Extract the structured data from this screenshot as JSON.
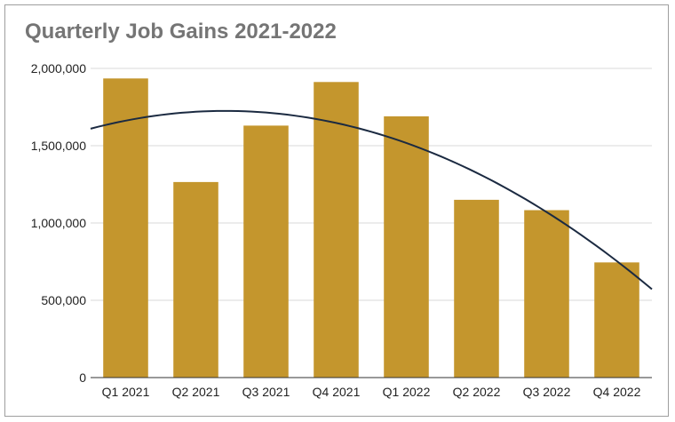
{
  "chart_data": {
    "type": "bar",
    "title": "Quarterly Job Gains 2021-2022",
    "xlabel": "",
    "ylabel": "",
    "categories": [
      "Q1 2021",
      "Q2 2021",
      "Q3 2021",
      "Q4 2021",
      "Q1 2022",
      "Q2 2022",
      "Q3 2022",
      "Q4 2022"
    ],
    "series": [
      {
        "values": [
          1935000,
          1265000,
          1630000,
          1912000,
          1690000,
          1150000,
          1083000,
          745000
        ]
      }
    ],
    "trendline": {
      "type": "polynomial",
      "degree": 2,
      "color": "#1b2a41"
    },
    "ylim": [
      0,
      2000000
    ],
    "yticks": [
      0,
      500000,
      1000000,
      1500000,
      2000000
    ],
    "ytick_labels": [
      "0",
      "500,000",
      "1,000,000",
      "1,500,000",
      "2,000,000"
    ],
    "grid": true,
    "legend": "none",
    "colors": {
      "bar": "#c4962d",
      "trend": "#1b2a41",
      "grid": "#d9d9d9",
      "axis": "#333333"
    }
  }
}
